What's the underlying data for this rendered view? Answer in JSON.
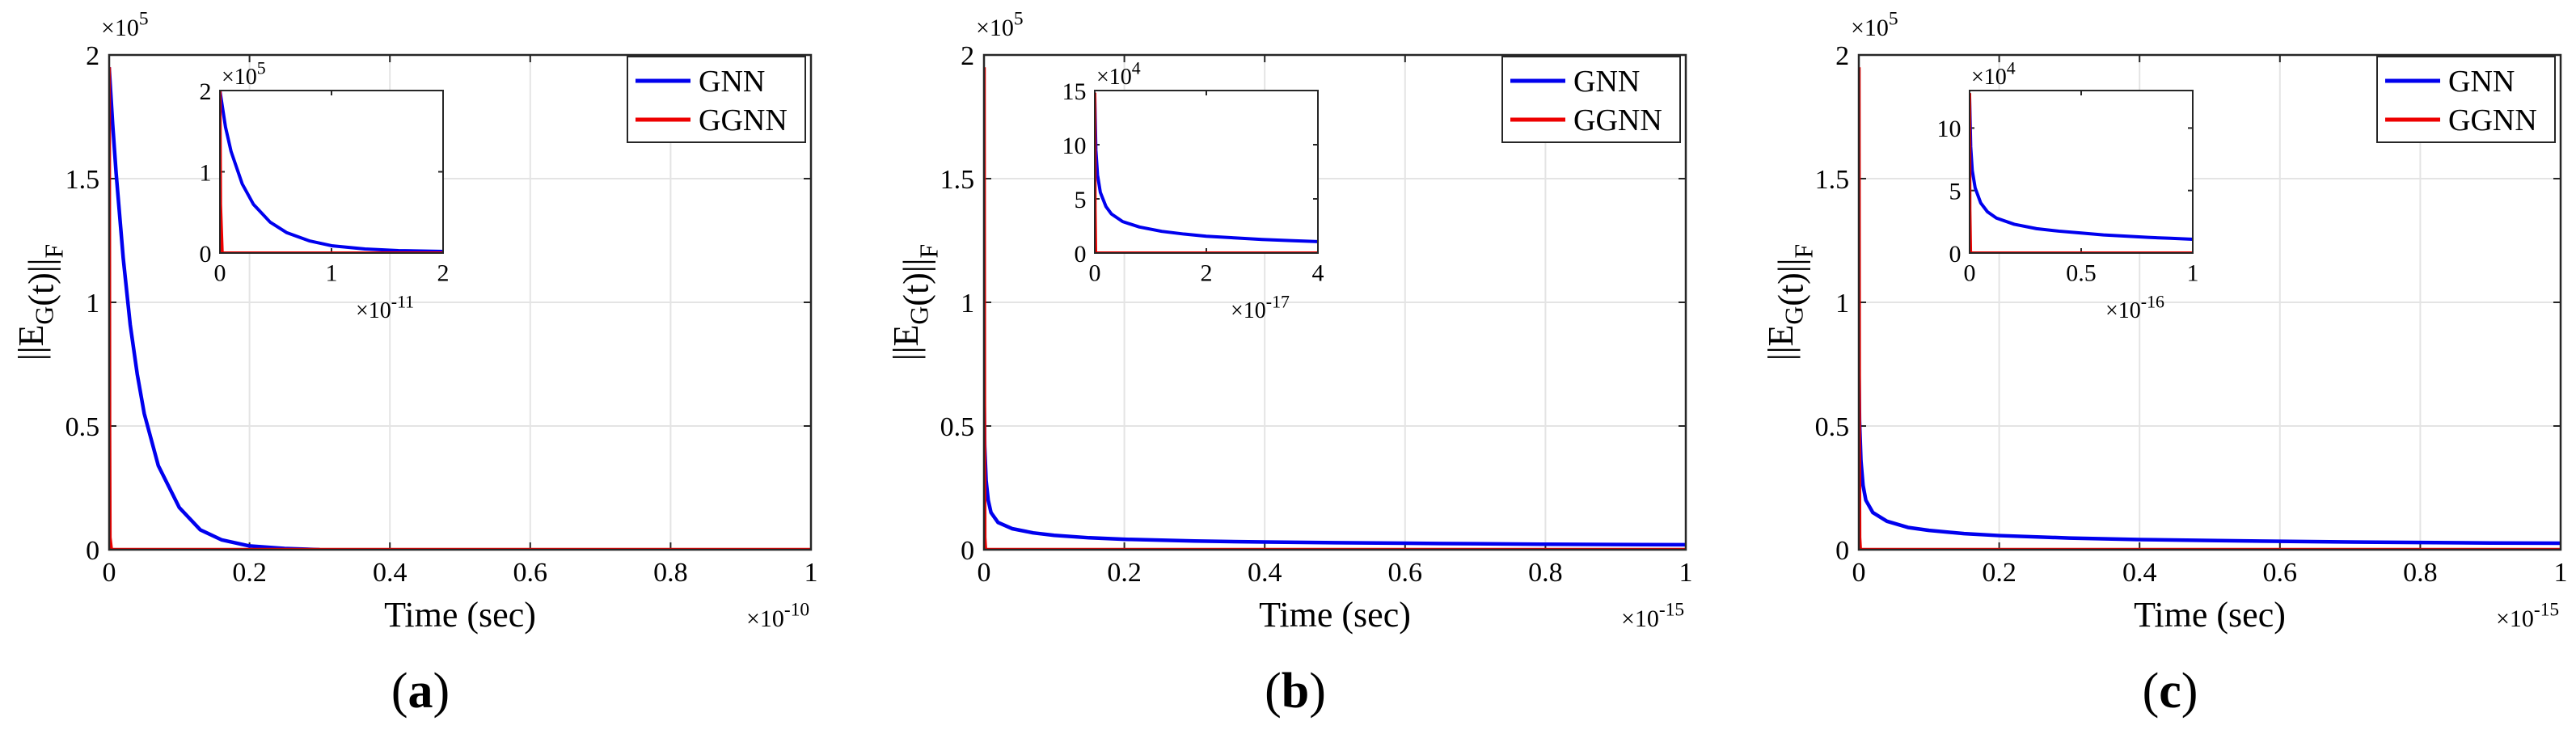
{
  "colors": {
    "gnn": "#0000ee",
    "ggnn": "#ee0000",
    "grid": "#e4e4e4",
    "axis": "#262626"
  },
  "chart_data": [
    {
      "panel_label": "a",
      "type": "line",
      "xlabel": "Time (sec)",
      "ylabel": "||E_G(t)||_F",
      "xlim": [
        0,
        1
      ],
      "ylim": [
        0,
        2
      ],
      "x_multiplier": "×10^-10",
      "y_multiplier": "×10^5",
      "x_ticks": [
        0,
        0.2,
        0.4,
        0.6,
        0.8,
        1
      ],
      "x_tick_labels": [
        "0",
        "0.2",
        "0.4",
        "0.6",
        "0.8",
        "1"
      ],
      "y_ticks": [
        0,
        0.5,
        1,
        1.5,
        2
      ],
      "y_tick_labels": [
        "0",
        "0.5",
        "1",
        "1.5",
        "2"
      ],
      "legend": [
        "GNN",
        "GGNN"
      ],
      "legend_position": "top-right",
      "grid": true,
      "series": [
        {
          "name": "GNN",
          "x": [
            0,
            0.005,
            0.01,
            0.02,
            0.03,
            0.04,
            0.05,
            0.07,
            0.1,
            0.13,
            0.16,
            0.2,
            0.25,
            0.3
          ],
          "values": [
            1.95,
            1.72,
            1.52,
            1.18,
            0.91,
            0.71,
            0.55,
            0.34,
            0.17,
            0.08,
            0.04,
            0.015,
            0.005,
            0.0
          ]
        },
        {
          "name": "GGNN",
          "x": [
            0,
            0.0005,
            0.001,
            0.003,
            1
          ],
          "values": [
            1.95,
            0.5,
            0.05,
            0.0,
            0.0
          ]
        }
      ],
      "inset": {
        "xlim": [
          0,
          2
        ],
        "ylim": [
          0,
          2
        ],
        "x_multiplier": "×10^-11",
        "y_multiplier": "×10^5",
        "x_ticks": [
          0,
          1,
          2
        ],
        "x_tick_labels": [
          "0",
          "1",
          "2"
        ],
        "y_ticks": [
          0,
          1,
          2
        ],
        "y_tick_labels": [
          "0",
          "1",
          "2"
        ],
        "series": [
          {
            "name": "GNN",
            "x": [
              0,
              0.05,
              0.1,
              0.2,
              0.3,
              0.45,
              0.6,
              0.8,
              1.0,
              1.3,
              1.6,
              2.0
            ],
            "values": [
              2.0,
              1.55,
              1.25,
              0.85,
              0.6,
              0.38,
              0.25,
              0.15,
              0.09,
              0.05,
              0.03,
              0.02
            ]
          },
          {
            "name": "GGNN",
            "x": [
              0,
              0.005,
              0.02,
              2
            ],
            "values": [
              2.0,
              0.6,
              0.0,
              0.0
            ]
          }
        ]
      }
    },
    {
      "panel_label": "b",
      "type": "line",
      "xlabel": "Time (sec)",
      "ylabel": "||E_G(t)||_F",
      "xlim": [
        0,
        1
      ],
      "ylim": [
        0,
        2
      ],
      "x_multiplier": "×10^-15",
      "y_multiplier": "×10^5",
      "x_ticks": [
        0,
        0.2,
        0.4,
        0.6,
        0.8,
        1
      ],
      "x_tick_labels": [
        "0",
        "0.2",
        "0.4",
        "0.6",
        "0.8",
        "1"
      ],
      "y_ticks": [
        0,
        0.5,
        1,
        1.5,
        2
      ],
      "y_tick_labels": [
        "0",
        "0.5",
        "1",
        "1.5",
        "2"
      ],
      "legend": [
        "GNN",
        "GGNN"
      ],
      "legend_position": "top-right",
      "grid": true,
      "series": [
        {
          "name": "GNN",
          "x": [
            0,
            0.001,
            0.003,
            0.006,
            0.01,
            0.02,
            0.04,
            0.07,
            0.1,
            0.15,
            0.2,
            0.3,
            0.4,
            0.5,
            0.6,
            0.7,
            0.8,
            0.9,
            1.0
          ],
          "values": [
            0.65,
            0.42,
            0.28,
            0.2,
            0.15,
            0.11,
            0.085,
            0.068,
            0.058,
            0.048,
            0.042,
            0.035,
            0.031,
            0.028,
            0.026,
            0.024,
            0.022,
            0.021,
            0.02
          ]
        },
        {
          "name": "GGNN",
          "x": [
            0,
            0.0005,
            0.001,
            0.002,
            1
          ],
          "values": [
            1.95,
            0.6,
            0.05,
            0.0,
            0.0
          ]
        }
      ],
      "inset": {
        "xlim": [
          0,
          4
        ],
        "ylim": [
          0,
          15
        ],
        "x_multiplier": "×10^-17",
        "y_multiplier": "×10^4",
        "x_ticks": [
          0,
          2,
          4
        ],
        "x_tick_labels": [
          "0",
          "2",
          "4"
        ],
        "y_ticks": [
          0,
          5,
          10,
          15
        ],
        "y_tick_labels": [
          "0",
          "5",
          "10",
          "15"
        ],
        "series": [
          {
            "name": "GNN",
            "x": [
              0,
              0.02,
              0.05,
              0.1,
              0.2,
              0.3,
              0.5,
              0.8,
              1.2,
              1.6,
              2.0,
              2.5,
              3.0,
              3.5,
              4.0
            ],
            "values": [
              14.5,
              9.5,
              7.2,
              5.6,
              4.3,
              3.6,
              2.9,
              2.4,
              2.0,
              1.75,
              1.55,
              1.4,
              1.25,
              1.15,
              1.05
            ]
          },
          {
            "name": "GGNN",
            "x": [
              0,
              0.005,
              0.015,
              4
            ],
            "values": [
              14.8,
              4.0,
              0.0,
              0.0
            ]
          }
        ]
      }
    },
    {
      "panel_label": "c",
      "type": "line",
      "xlabel": "Time (sec)",
      "ylabel": "||E_G(t)||_F",
      "xlim": [
        0,
        1
      ],
      "ylim": [
        0,
        2
      ],
      "x_multiplier": "×10^-15",
      "y_multiplier": "×10^5",
      "x_ticks": [
        0,
        0.2,
        0.4,
        0.6,
        0.8,
        1
      ],
      "x_tick_labels": [
        "0",
        "0.2",
        "0.4",
        "0.6",
        "0.8",
        "1"
      ],
      "y_ticks": [
        0,
        0.5,
        1,
        1.5,
        2
      ],
      "y_tick_labels": [
        "0",
        "0.5",
        "1",
        "1.5",
        "2"
      ],
      "legend": [
        "GNN",
        "GGNN"
      ],
      "legend_position": "top-right",
      "grid": true,
      "series": [
        {
          "name": "GNN",
          "x": [
            0,
            0.001,
            0.003,
            0.006,
            0.01,
            0.02,
            0.04,
            0.07,
            0.1,
            0.15,
            0.2,
            0.3,
            0.4,
            0.5,
            0.6,
            0.7,
            0.8,
            0.9,
            1.0
          ],
          "values": [
            0.78,
            0.52,
            0.36,
            0.26,
            0.2,
            0.15,
            0.115,
            0.09,
            0.078,
            0.065,
            0.057,
            0.047,
            0.041,
            0.037,
            0.034,
            0.031,
            0.029,
            0.027,
            0.026
          ]
        },
        {
          "name": "GGNN",
          "x": [
            0,
            0.0005,
            0.001,
            0.002,
            1
          ],
          "values": [
            1.95,
            0.6,
            0.05,
            0.0,
            0.0
          ]
        }
      ],
      "inset": {
        "xlim": [
          0,
          1
        ],
        "ylim": [
          0,
          13
        ],
        "x_multiplier": "×10^-16",
        "y_multiplier": "×10^4",
        "x_ticks": [
          0,
          0.5,
          1
        ],
        "x_tick_labels": [
          "0",
          "0.5",
          "1"
        ],
        "y_ticks": [
          0,
          5,
          10
        ],
        "y_tick_labels": [
          "0",
          "5",
          "10"
        ],
        "series": [
          {
            "name": "GNN",
            "x": [
              0,
              0.005,
              0.012,
              0.025,
              0.05,
              0.08,
              0.12,
              0.2,
              0.3,
              0.4,
              0.5,
              0.6,
              0.7,
              0.8,
              0.9,
              1.0
            ],
            "values": [
              12.5,
              8.5,
              6.6,
              5.2,
              4.0,
              3.3,
              2.8,
              2.3,
              1.95,
              1.75,
              1.6,
              1.45,
              1.35,
              1.25,
              1.18,
              1.1
            ]
          },
          {
            "name": "GGNN",
            "x": [
              0,
              0.001,
              0.004,
              1
            ],
            "values": [
              12.8,
              3.5,
              0.0,
              0.0
            ]
          }
        ]
      }
    }
  ]
}
